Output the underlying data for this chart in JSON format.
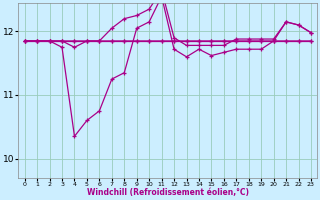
{
  "xlabel": "Windchill (Refroidissement éolien,°C)",
  "bg_color": "#cceeff",
  "line_color": "#aa0088",
  "grid_color": "#99ccbb",
  "x_ticks": [
    0,
    1,
    2,
    3,
    4,
    5,
    6,
    7,
    8,
    9,
    10,
    11,
    12,
    13,
    14,
    15,
    16,
    17,
    18,
    19,
    20,
    21,
    22,
    23
  ],
  "y_ticks": [
    10,
    11,
    12
  ],
  "ylim": [
    9.7,
    12.45
  ],
  "xlim": [
    -0.5,
    23.5
  ],
  "series": [
    [
      11.85,
      11.85,
      11.85,
      11.85,
      11.85,
      11.85,
      11.85,
      11.85,
      11.85,
      11.85,
      11.85,
      11.85,
      11.85,
      11.85,
      11.85,
      11.85,
      11.85,
      11.85,
      11.85,
      11.85,
      11.85,
      11.85,
      11.85,
      11.85
    ],
    [
      11.85,
      11.85,
      11.85,
      11.85,
      11.75,
      11.85,
      11.85,
      11.85,
      11.85,
      11.85,
      11.85,
      11.85,
      11.85,
      11.85,
      11.85,
      11.85,
      11.85,
      11.85,
      11.85,
      11.85,
      11.85,
      11.85,
      11.85,
      11.85
    ],
    [
      11.85,
      11.85,
      11.85,
      11.85,
      11.85,
      11.85,
      11.85,
      12.05,
      12.2,
      12.25,
      12.35,
      12.65,
      11.9,
      11.78,
      11.78,
      11.78,
      11.78,
      11.88,
      11.88,
      11.88,
      11.88,
      12.15,
      12.1,
      11.98
    ],
    [
      11.85,
      11.85,
      11.85,
      11.75,
      10.35,
      10.6,
      10.75,
      11.25,
      11.35,
      12.05,
      12.15,
      12.55,
      11.72,
      11.6,
      11.72,
      11.62,
      11.67,
      11.72,
      11.72,
      11.72,
      11.85,
      12.15,
      12.1,
      11.98
    ]
  ]
}
